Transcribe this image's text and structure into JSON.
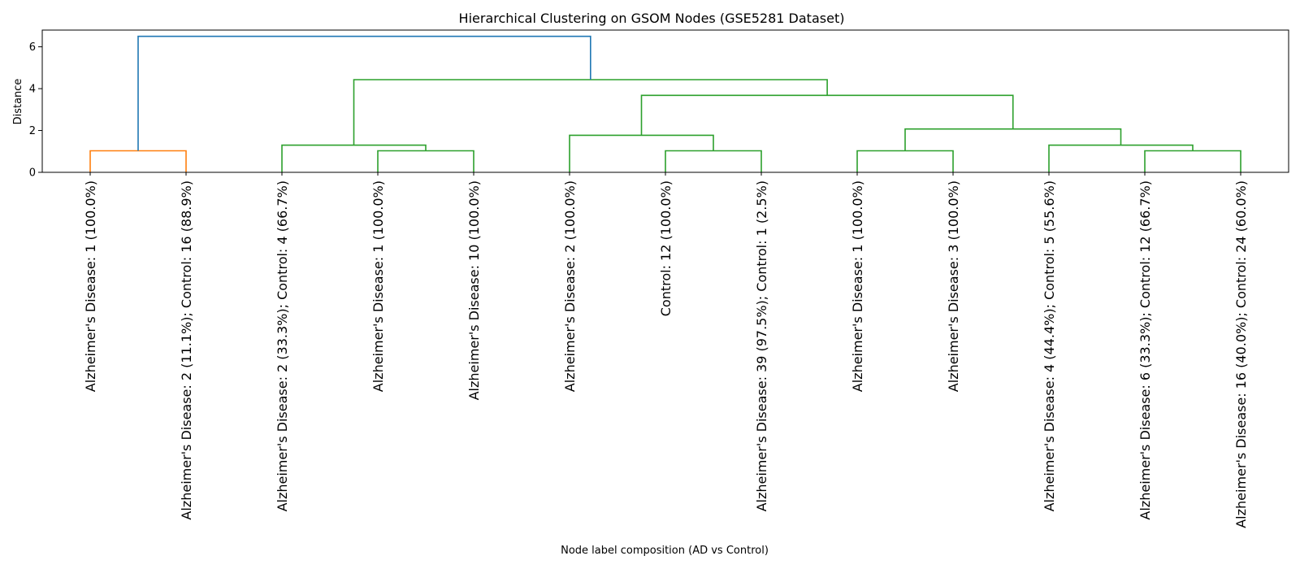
{
  "chart_data": {
    "type": "dendrogram",
    "title": "Hierarchical Clustering on GSOM Nodes (GSE5281 Dataset)",
    "xlabel": "Node label composition (AD vs Control)",
    "ylabel": "Distance",
    "ylim": [
      0,
      6.8
    ],
    "yticks": [
      0,
      2,
      4,
      6
    ],
    "grid": false,
    "leaves": [
      "Alzheimer's Disease: 1 (100.0%)",
      "Alzheimer's Disease: 2 (11.1%); Control: 16 (88.9%)",
      "Alzheimer's Disease: 2 (33.3%); Control: 4 (66.7%)",
      "Alzheimer's Disease: 1 (100.0%)",
      "Alzheimer's Disease: 10 (100.0%)",
      "Alzheimer's Disease: 2 (100.0%)",
      "Control: 12 (100.0%)",
      "Alzheimer's Disease: 39 (97.5%); Control: 1 (2.5%)",
      "Alzheimer's Disease: 1 (100.0%)",
      "Alzheimer's Disease: 3 (100.0%)",
      "Alzheimer's Disease: 4 (44.4%); Control: 5 (55.6%)",
      "Alzheimer's Disease: 6 (33.3%); Control: 12 (66.7%)",
      "Alzheimer's Disease: 16 (40.0%); Control: 24 (60.0%)"
    ],
    "links": [
      {
        "left": 0,
        "right": 1,
        "height": 1.03,
        "color": "#ff7f0e"
      },
      {
        "left": 3,
        "right": 4,
        "height": 1.03,
        "color": "#2ca02c"
      },
      {
        "left": 2,
        "right": 14,
        "height": 1.3,
        "color": "#2ca02c"
      },
      {
        "left": 6,
        "right": 7,
        "height": 1.03,
        "color": "#2ca02c"
      },
      {
        "left": 5,
        "right": 16,
        "height": 1.77,
        "color": "#2ca02c"
      },
      {
        "left": 8,
        "right": 9,
        "height": 1.03,
        "color": "#2ca02c"
      },
      {
        "left": 11,
        "right": 12,
        "height": 1.03,
        "color": "#2ca02c"
      },
      {
        "left": 10,
        "right": 19,
        "height": 1.3,
        "color": "#2ca02c"
      },
      {
        "left": 18,
        "right": 20,
        "height": 2.07,
        "color": "#2ca02c"
      },
      {
        "left": 17,
        "right": 21,
        "height": 3.68,
        "color": "#2ca02c"
      },
      {
        "left": 15,
        "right": 22,
        "height": 4.43,
        "color": "#2ca02c"
      },
      {
        "left": 13,
        "right": 23,
        "height": 6.5,
        "color": "#1f77b4"
      }
    ]
  }
}
